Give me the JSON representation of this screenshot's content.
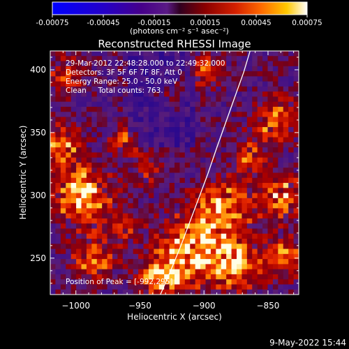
{
  "chart_data": {
    "type": "heatmap",
    "title": "Reconstructed RHESSI Image",
    "colorbar": {
      "min": -0.00075,
      "max": 0.00075,
      "tick_labels": [
        "-0.00075",
        "-0.00045",
        "-0.00015",
        "0.00015",
        "0.00045",
        "0.00075"
      ],
      "tick_values": [
        -0.00075,
        -0.00045,
        -0.00015,
        0.00015,
        0.00045,
        0.00075
      ],
      "unit_label": "(photons cm⁻² s⁻¹ asec⁻²)",
      "colormap": [
        "#0000ff",
        "#2a00b4",
        "#4a007a",
        "#5b2080",
        "#7a0010",
        "#b00000",
        "#e83000",
        "#ff8000",
        "#ffd000",
        "#ffffff"
      ]
    },
    "xlabel": "Heliocentric X (arcsec)",
    "ylabel": "Heliocentric Y (arcsec)",
    "xlim": [
      -1020,
      -826
    ],
    "ylim": [
      221,
      415
    ],
    "x_ticks": [
      -1000,
      -950,
      -900,
      -850
    ],
    "y_ticks": [
      250,
      300,
      350,
      400
    ],
    "x_tick_labels": [
      "−1000",
      "−950",
      "−900",
      "−850"
    ],
    "y_tick_labels": [
      "250",
      "300",
      "350",
      "400"
    ],
    "annotations": [
      "29-Mar-2012 22:48:28.000 to 22:49:32.000",
      "Detectors: 3F 5F 6F 7F 8F, Att 0",
      "Energy Range: 25.0 - 50.0 keV",
      "Clean     Total counts: 763."
    ],
    "peak_label": "Position of Peak = [-992,295]",
    "peak_position": [
      -992,
      295
    ],
    "limb_curve": {
      "x": [
        -934,
        -926,
        -918,
        -911,
        -904,
        -897,
        -890,
        -883,
        -876,
        -869,
        -864
      ],
      "y": [
        221,
        240,
        260,
        279,
        298,
        317,
        338,
        358,
        378,
        398,
        415
      ]
    },
    "image_grid": {
      "cols": 48,
      "rows": 48
    }
  },
  "footer_timestamp": "9-May-2022 15:44",
  "colors": {
    "background": "#000000",
    "text": "#ffffff",
    "limb": "#ffffff"
  }
}
